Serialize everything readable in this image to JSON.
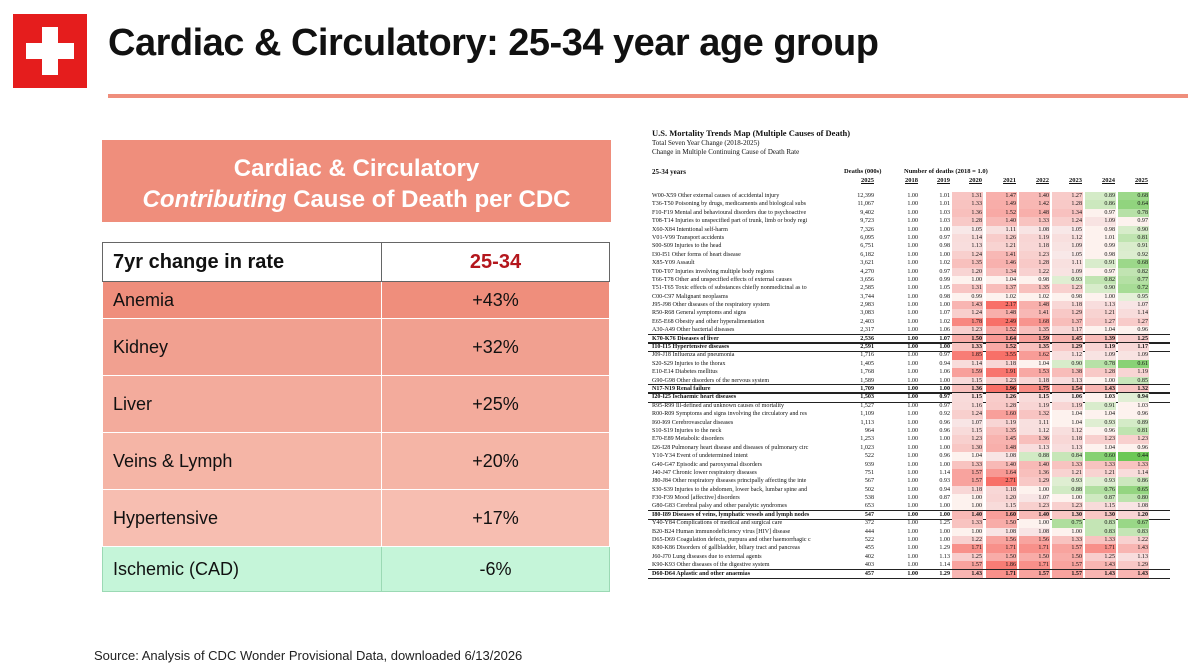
{
  "title": "Cardiac & Circulatory: 25-34 year age group",
  "header_box": {
    "line1": "Cardiac & Circulatory",
    "line2_italic": "Contributing",
    "line2_rest": " Cause of Death per CDC"
  },
  "rate_table": {
    "col1_header": "7yr change in rate",
    "col2_header": "25-34",
    "rows": [
      {
        "category": "Anemia",
        "value": "+43%"
      },
      {
        "category": "Kidney",
        "value": "+32%"
      },
      {
        "category": "Liver",
        "value": "+25%"
      },
      {
        "category": "Veins & Lymph",
        "value": "+20%"
      },
      {
        "category": "Hypertensive",
        "value": "+17%"
      },
      {
        "category": "Ischemic (CAD)",
        "value": "-6%"
      }
    ]
  },
  "source": "Source: Analysis of CDC Wonder Provisional Data, downloaded 6/13/2026",
  "mortality_table": {
    "title": "U.S. Mortality Trends Map (Multiple Causes of Death)",
    "subtitle1": "Total Seven Year Change (2018-2025)",
    "subtitle2": "Change in Multiple Continuing Cause of Death Rate",
    "age_label": "25-34 years",
    "deaths_header": "Deaths (000s)",
    "number_header": "Number of deaths (2018 = 1.0)",
    "years": [
      "2025",
      "2018",
      "2019",
      "2020",
      "2021",
      "2022",
      "2023",
      "2024",
      "2025"
    ],
    "rows": [
      {
        "label": "W00-X59 Other external causes of accidental injury",
        "d": "12,399",
        "v": [
          "1.00",
          "1.01",
          "1.31",
          "1.47",
          "1.40",
          "1.27",
          "0.89",
          "0.68"
        ]
      },
      {
        "label": "T36-T50 Poisoning by drugs, medicaments and biological subs",
        "d": "11,067",
        "v": [
          "1.00",
          "1.01",
          "1.33",
          "1.49",
          "1.42",
          "1.28",
          "0.86",
          "0.64"
        ]
      },
      {
        "label": "F10-F19 Mental and behavioural disorders due to psychoactive",
        "d": "9,402",
        "v": [
          "1.00",
          "1.03",
          "1.36",
          "1.52",
          "1.48",
          "1.34",
          "0.97",
          "0.78"
        ]
      },
      {
        "label": "T08-T14 Injuries to unspecified part of trunk, limb or body regi",
        "d": "9,723",
        "v": [
          "1.00",
          "1.03",
          "1.28",
          "1.40",
          "1.33",
          "1.24",
          "1.09",
          "0.97"
        ]
      },
      {
        "label": "X60-X84 Intentional self-harm",
        "d": "7,326",
        "v": [
          "1.00",
          "1.00",
          "1.05",
          "1.11",
          "1.08",
          "1.05",
          "0.98",
          "0.90"
        ]
      },
      {
        "label": "V01-V99 Transport accidents",
        "d": "6,095",
        "v": [
          "1.00",
          "0.97",
          "1.14",
          "1.26",
          "1.19",
          "1.12",
          "1.01",
          "0.81"
        ]
      },
      {
        "label": "S00-S09 Injuries to the head",
        "d": "6,751",
        "v": [
          "1.00",
          "0.98",
          "1.13",
          "1.21",
          "1.18",
          "1.09",
          "0.99",
          "0.91"
        ]
      },
      {
        "label": "I30-I51 Other forms of heart disease",
        "d": "6,182",
        "v": [
          "1.00",
          "1.00",
          "1.24",
          "1.41",
          "1.23",
          "1.05",
          "0.98",
          "0.92"
        ]
      },
      {
        "label": "X85-Y09 Assault",
        "d": "3,621",
        "v": [
          "1.00",
          "1.02",
          "1.35",
          "1.46",
          "1.28",
          "1.11",
          "0.91",
          "0.68"
        ]
      },
      {
        "label": "T00-T07 Injuries involving multiple body regions",
        "d": "4,270",
        "v": [
          "1.00",
          "0.97",
          "1.20",
          "1.34",
          "1.22",
          "1.09",
          "0.97",
          "0.82"
        ]
      },
      {
        "label": "T66-T78 Other and unspecified effects of external causes",
        "d": "3,656",
        "v": [
          "1.00",
          "0.99",
          "1.00",
          "1.04",
          "0.98",
          "0.93",
          "0.82",
          "0.77"
        ]
      },
      {
        "label": "T51-T65 Toxic effects of substances chiefly nonmedicinal as to",
        "d": "2,585",
        "v": [
          "1.00",
          "1.05",
          "1.31",
          "1.37",
          "1.35",
          "1.23",
          "0.90",
          "0.72"
        ]
      },
      {
        "label": "C00-C97 Malignant neoplasms",
        "d": "3,744",
        "v": [
          "1.00",
          "0.98",
          "0.99",
          "1.02",
          "1.02",
          "0.98",
          "1.00",
          "0.95"
        ]
      },
      {
        "label": "J95-J98 Other diseases of the respiratory system",
        "d": "2,983",
        "v": [
          "1.00",
          "1.00",
          "1.43",
          "2.17",
          "1.48",
          "1.18",
          "1.13",
          "1.07"
        ]
      },
      {
        "label": "R50-R68 General symptoms and signs",
        "d": "3,083",
        "v": [
          "1.00",
          "1.07",
          "1.24",
          "1.48",
          "1.41",
          "1.29",
          "1.21",
          "1.14"
        ]
      },
      {
        "label": "E65-E68 Obesity and other hyperalimentation",
        "d": "2,403",
        "v": [
          "1.00",
          "1.02",
          "1.78",
          "2.49",
          "1.68",
          "1.37",
          "1.27",
          "1.27"
        ]
      },
      {
        "label": "A30-A49 Other bacterial diseases",
        "d": "2,317",
        "v": [
          "1.00",
          "1.06",
          "1.23",
          "1.52",
          "1.35",
          "1.17",
          "1.04",
          "0.96"
        ]
      },
      {
        "label": "K70-K76 Diseases of liver",
        "d": "2,536",
        "v": [
          "1.00",
          "1.07",
          "1.50",
          "1.64",
          "1.59",
          "1.45",
          "1.39",
          "1.25"
        ],
        "bold": true
      },
      {
        "label": "I10-I15 Hypertensive diseases",
        "d": "2,591",
        "v": [
          "1.00",
          "1.00",
          "1.33",
          "1.52",
          "1.35",
          "1.29",
          "1.19",
          "1.17"
        ],
        "bold": true
      },
      {
        "label": "J09-J18 Influenza and pneumonia",
        "d": "1,716",
        "v": [
          "1.00",
          "0.97",
          "1.85",
          "3.55",
          "1.62",
          "1.12",
          "1.09",
          "1.09"
        ]
      },
      {
        "label": "S20-S29 Injuries to the thorax",
        "d": "1,405",
        "v": [
          "1.00",
          "0.94",
          "1.14",
          "1.18",
          "1.04",
          "0.90",
          "0.78",
          "0.61"
        ]
      },
      {
        "label": "E10-E14 Diabetes mellitus",
        "d": "1,768",
        "v": [
          "1.00",
          "1.06",
          "1.59",
          "1.91",
          "1.53",
          "1.38",
          "1.28",
          "1.19"
        ]
      },
      {
        "label": "G90-G98 Other disorders of the nervous system",
        "d": "1,589",
        "v": [
          "1.00",
          "1.00",
          "1.15",
          "1.23",
          "1.18",
          "1.13",
          "1.00",
          "0.85"
        ]
      },
      {
        "label": "N17-N19 Renal failure",
        "d": "1,709",
        "v": [
          "1.00",
          "1.00",
          "1.36",
          "1.96",
          "1.75",
          "1.54",
          "1.43",
          "1.32"
        ],
        "bold": true
      },
      {
        "label": "I20-I25 Ischaemic heart diseases",
        "d": "1,503",
        "v": [
          "1.00",
          "0.97",
          "1.15",
          "1.26",
          "1.15",
          "1.06",
          "1.03",
          "0.94"
        ],
        "bold": true
      },
      {
        "label": "R95-R99 Ill-defined and unknown causes of mortality",
        "d": "1,527",
        "v": [
          "1.00",
          "0.97",
          "1.16",
          "1.28",
          "1.19",
          "1.19",
          "0.91",
          "1.03"
        ]
      },
      {
        "label": "R00-R09 Symptoms and signs involving the circulatory and res",
        "d": "1,109",
        "v": [
          "1.00",
          "0.92",
          "1.24",
          "1.60",
          "1.32",
          "1.04",
          "1.04",
          "0.96"
        ]
      },
      {
        "label": "I60-I69 Cerebrovascular diseases",
        "d": "1,113",
        "v": [
          "1.00",
          "0.96",
          "1.07",
          "1.19",
          "1.11",
          "1.04",
          "0.93",
          "0.89"
        ]
      },
      {
        "label": "S10-S19 Injuries to the neck",
        "d": "964",
        "v": [
          "1.00",
          "0.96",
          "1.15",
          "1.35",
          "1.12",
          "1.12",
          "0.96",
          "0.81"
        ]
      },
      {
        "label": "E70-E89 Metabolic disorders",
        "d": "1,253",
        "v": [
          "1.00",
          "1.00",
          "1.23",
          "1.45",
          "1.36",
          "1.18",
          "1.23",
          "1.23"
        ]
      },
      {
        "label": "I26-I28 Pulmonary heart disease and diseases of pulmonary circ",
        "d": "1,023",
        "v": [
          "1.00",
          "1.00",
          "1.30",
          "1.48",
          "1.13",
          "1.13",
          "1.04",
          "0.96"
        ]
      },
      {
        "label": "Y10-Y34 Event of undetermined intent",
        "d": "522",
        "v": [
          "1.00",
          "0.96",
          "1.04",
          "1.08",
          "0.88",
          "0.84",
          "0.60",
          "0.44"
        ]
      },
      {
        "label": "G40-G47 Episodic and paroxysmal disorders",
        "d": "939",
        "v": [
          "1.00",
          "1.00",
          "1.33",
          "1.40",
          "1.40",
          "1.33",
          "1.33",
          "1.33"
        ]
      },
      {
        "label": "J40-J47 Chronic lower respiratory diseases",
        "d": "751",
        "v": [
          "1.00",
          "1.14",
          "1.57",
          "1.64",
          "1.36",
          "1.21",
          "1.21",
          "1.14"
        ]
      },
      {
        "label": "J80-J84 Other respiratory diseases principally affecting the inte",
        "d": "567",
        "v": [
          "1.00",
          "0.93",
          "1.57",
          "2.71",
          "1.29",
          "0.93",
          "0.93",
          "0.86"
        ]
      },
      {
        "label": "S30-S39 Injuries to the abdomen, lower back, lumbar spine and",
        "d": "502",
        "v": [
          "1.00",
          "0.94",
          "1.18",
          "1.18",
          "1.00",
          "0.88",
          "0.76",
          "0.65"
        ]
      },
      {
        "label": "F30-F39 Mood [affective] disorders",
        "d": "538",
        "v": [
          "1.00",
          "0.87",
          "1.00",
          "1.20",
          "1.07",
          "1.00",
          "0.87",
          "0.80"
        ]
      },
      {
        "label": "G80-G83 Cerebral palsy and other paralytic syndromes",
        "d": "653",
        "v": [
          "1.00",
          "1.00",
          "1.00",
          "1.15",
          "1.23",
          "1.23",
          "1.15",
          "1.08"
        ]
      },
      {
        "label": "I80-I89 Diseases of veins, lymphatic vessels and lymph nodes",
        "d": "547",
        "v": [
          "1.00",
          "1.00",
          "1.40",
          "1.60",
          "1.40",
          "1.30",
          "1.30",
          "1.20"
        ],
        "bold": true
      },
      {
        "label": "Y40-Y84 Complications of medical and surgical care",
        "d": "372",
        "v": [
          "1.00",
          "1.25",
          "1.33",
          "1.50",
          "1.00",
          "0.75",
          "0.83",
          "0.67"
        ]
      },
      {
        "label": "B20-B24 Human immunodeficiency virus [HIV] disease",
        "d": "444",
        "v": [
          "1.00",
          "1.00",
          "1.00",
          "1.08",
          "1.08",
          "1.00",
          "0.83",
          "0.83"
        ]
      },
      {
        "label": "D65-D69 Coagulation defects, purpura and other haemorrhagic c",
        "d": "522",
        "v": [
          "1.00",
          "1.00",
          "1.22",
          "1.56",
          "1.56",
          "1.33",
          "1.33",
          "1.22"
        ]
      },
      {
        "label": "K80-K86 Disorders of gallbladder, biliary tract and pancreas",
        "d": "455",
        "v": [
          "1.00",
          "1.29",
          "1.71",
          "1.71",
          "1.71",
          "1.57",
          "1.71",
          "1.43"
        ]
      },
      {
        "label": "J60-J70 Lung diseases due to external agents",
        "d": "402",
        "v": [
          "1.00",
          "1.13",
          "1.25",
          "1.50",
          "1.50",
          "1.50",
          "1.25",
          "1.13"
        ]
      },
      {
        "label": "K90-K93 Other diseases of the digestive system",
        "d": "403",
        "v": [
          "1.00",
          "1.14",
          "1.57",
          "1.86",
          "1.71",
          "1.57",
          "1.43",
          "1.29"
        ]
      },
      {
        "label": "D60-D64 Aplastic and other anaemias",
        "d": "457",
        "v": [
          "1.00",
          "1.29",
          "1.43",
          "1.71",
          "1.57",
          "1.57",
          "1.43",
          "1.43"
        ],
        "bold": true
      }
    ]
  }
}
